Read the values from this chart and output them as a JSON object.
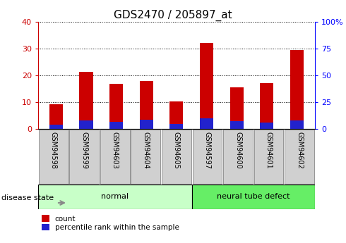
{
  "title": "GDS2470 / 205897_at",
  "samples": [
    "GSM94598",
    "GSM94599",
    "GSM94603",
    "GSM94604",
    "GSM94605",
    "GSM94597",
    "GSM94600",
    "GSM94601",
    "GSM94602"
  ],
  "count_values": [
    9.3,
    21.2,
    16.7,
    18.0,
    10.2,
    32.2,
    15.6,
    17.2,
    29.5
  ],
  "percentile_values": [
    4.0,
    7.5,
    6.5,
    8.5,
    4.5,
    10.0,
    7.0,
    6.0,
    8.0
  ],
  "groups": [
    {
      "label": "normal",
      "start": 0,
      "end": 4,
      "color": "#c8ffc8"
    },
    {
      "label": "neural tube defect",
      "start": 5,
      "end": 8,
      "color": "#66ee66"
    }
  ],
  "group_label": "disease state",
  "left_ylim": [
    0,
    40
  ],
  "right_ylim": [
    0,
    100
  ],
  "left_yticks": [
    0,
    10,
    20,
    30,
    40
  ],
  "right_yticks": [
    0,
    25,
    50,
    75,
    100
  ],
  "right_yticklabels": [
    "0",
    "25",
    "50",
    "75",
    "100%"
  ],
  "bar_color_red": "#cc0000",
  "bar_color_blue": "#2222cc",
  "bar_width": 0.45,
  "tick_bg_color": "#d0d0d0",
  "title_fontsize": 11,
  "legend_items": [
    "count",
    "percentile rank within the sample"
  ]
}
